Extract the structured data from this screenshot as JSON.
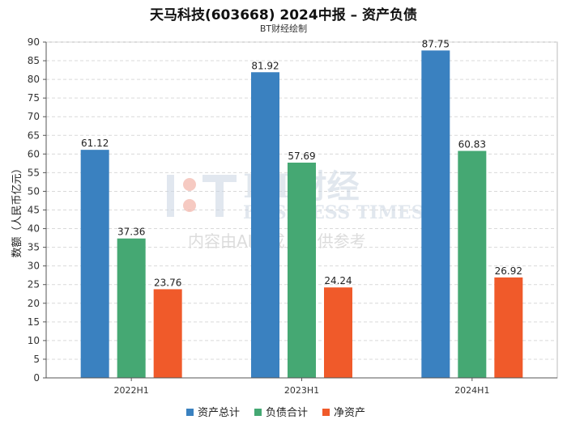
{
  "header": {
    "title": "天马科技(603668) 2024中报 – 资产负债",
    "subtitle": "BT财经绘制"
  },
  "watermark": {
    "brand": "BT财经",
    "brand_en": "BUSINESS TIMES",
    "notice": "内容由AI生成，仅供参考"
  },
  "chart_data": {
    "type": "bar",
    "title": "天马科技(603668) 2024中报 – 资产负债",
    "subtitle": "BT财经绘制",
    "xlabel": "",
    "ylabel": "数额（人民币亿元）",
    "ylim": [
      0,
      90
    ],
    "yticks": [
      0,
      5,
      10,
      15,
      20,
      25,
      30,
      35,
      40,
      45,
      50,
      55,
      60,
      65,
      70,
      75,
      80,
      85,
      90
    ],
    "grid": true,
    "legend_position": "bottom",
    "categories": [
      "2022H1",
      "2023H1",
      "2024H1"
    ],
    "series": [
      {
        "name": "资产总计",
        "color": "#3a81c0",
        "values": [
          61.12,
          81.92,
          87.75
        ],
        "labels": [
          "61.12",
          "81.92",
          "87.75"
        ]
      },
      {
        "name": "负债合计",
        "color": "#45a873",
        "values": [
          37.36,
          57.69,
          60.83
        ],
        "labels": [
          "37.36",
          "57.69",
          "60.83"
        ]
      },
      {
        "name": "净资产",
        "color": "#f05a2a",
        "values": [
          23.76,
          24.24,
          26.92
        ],
        "labels": [
          "23.76",
          "24.24",
          "26.92"
        ]
      }
    ]
  }
}
